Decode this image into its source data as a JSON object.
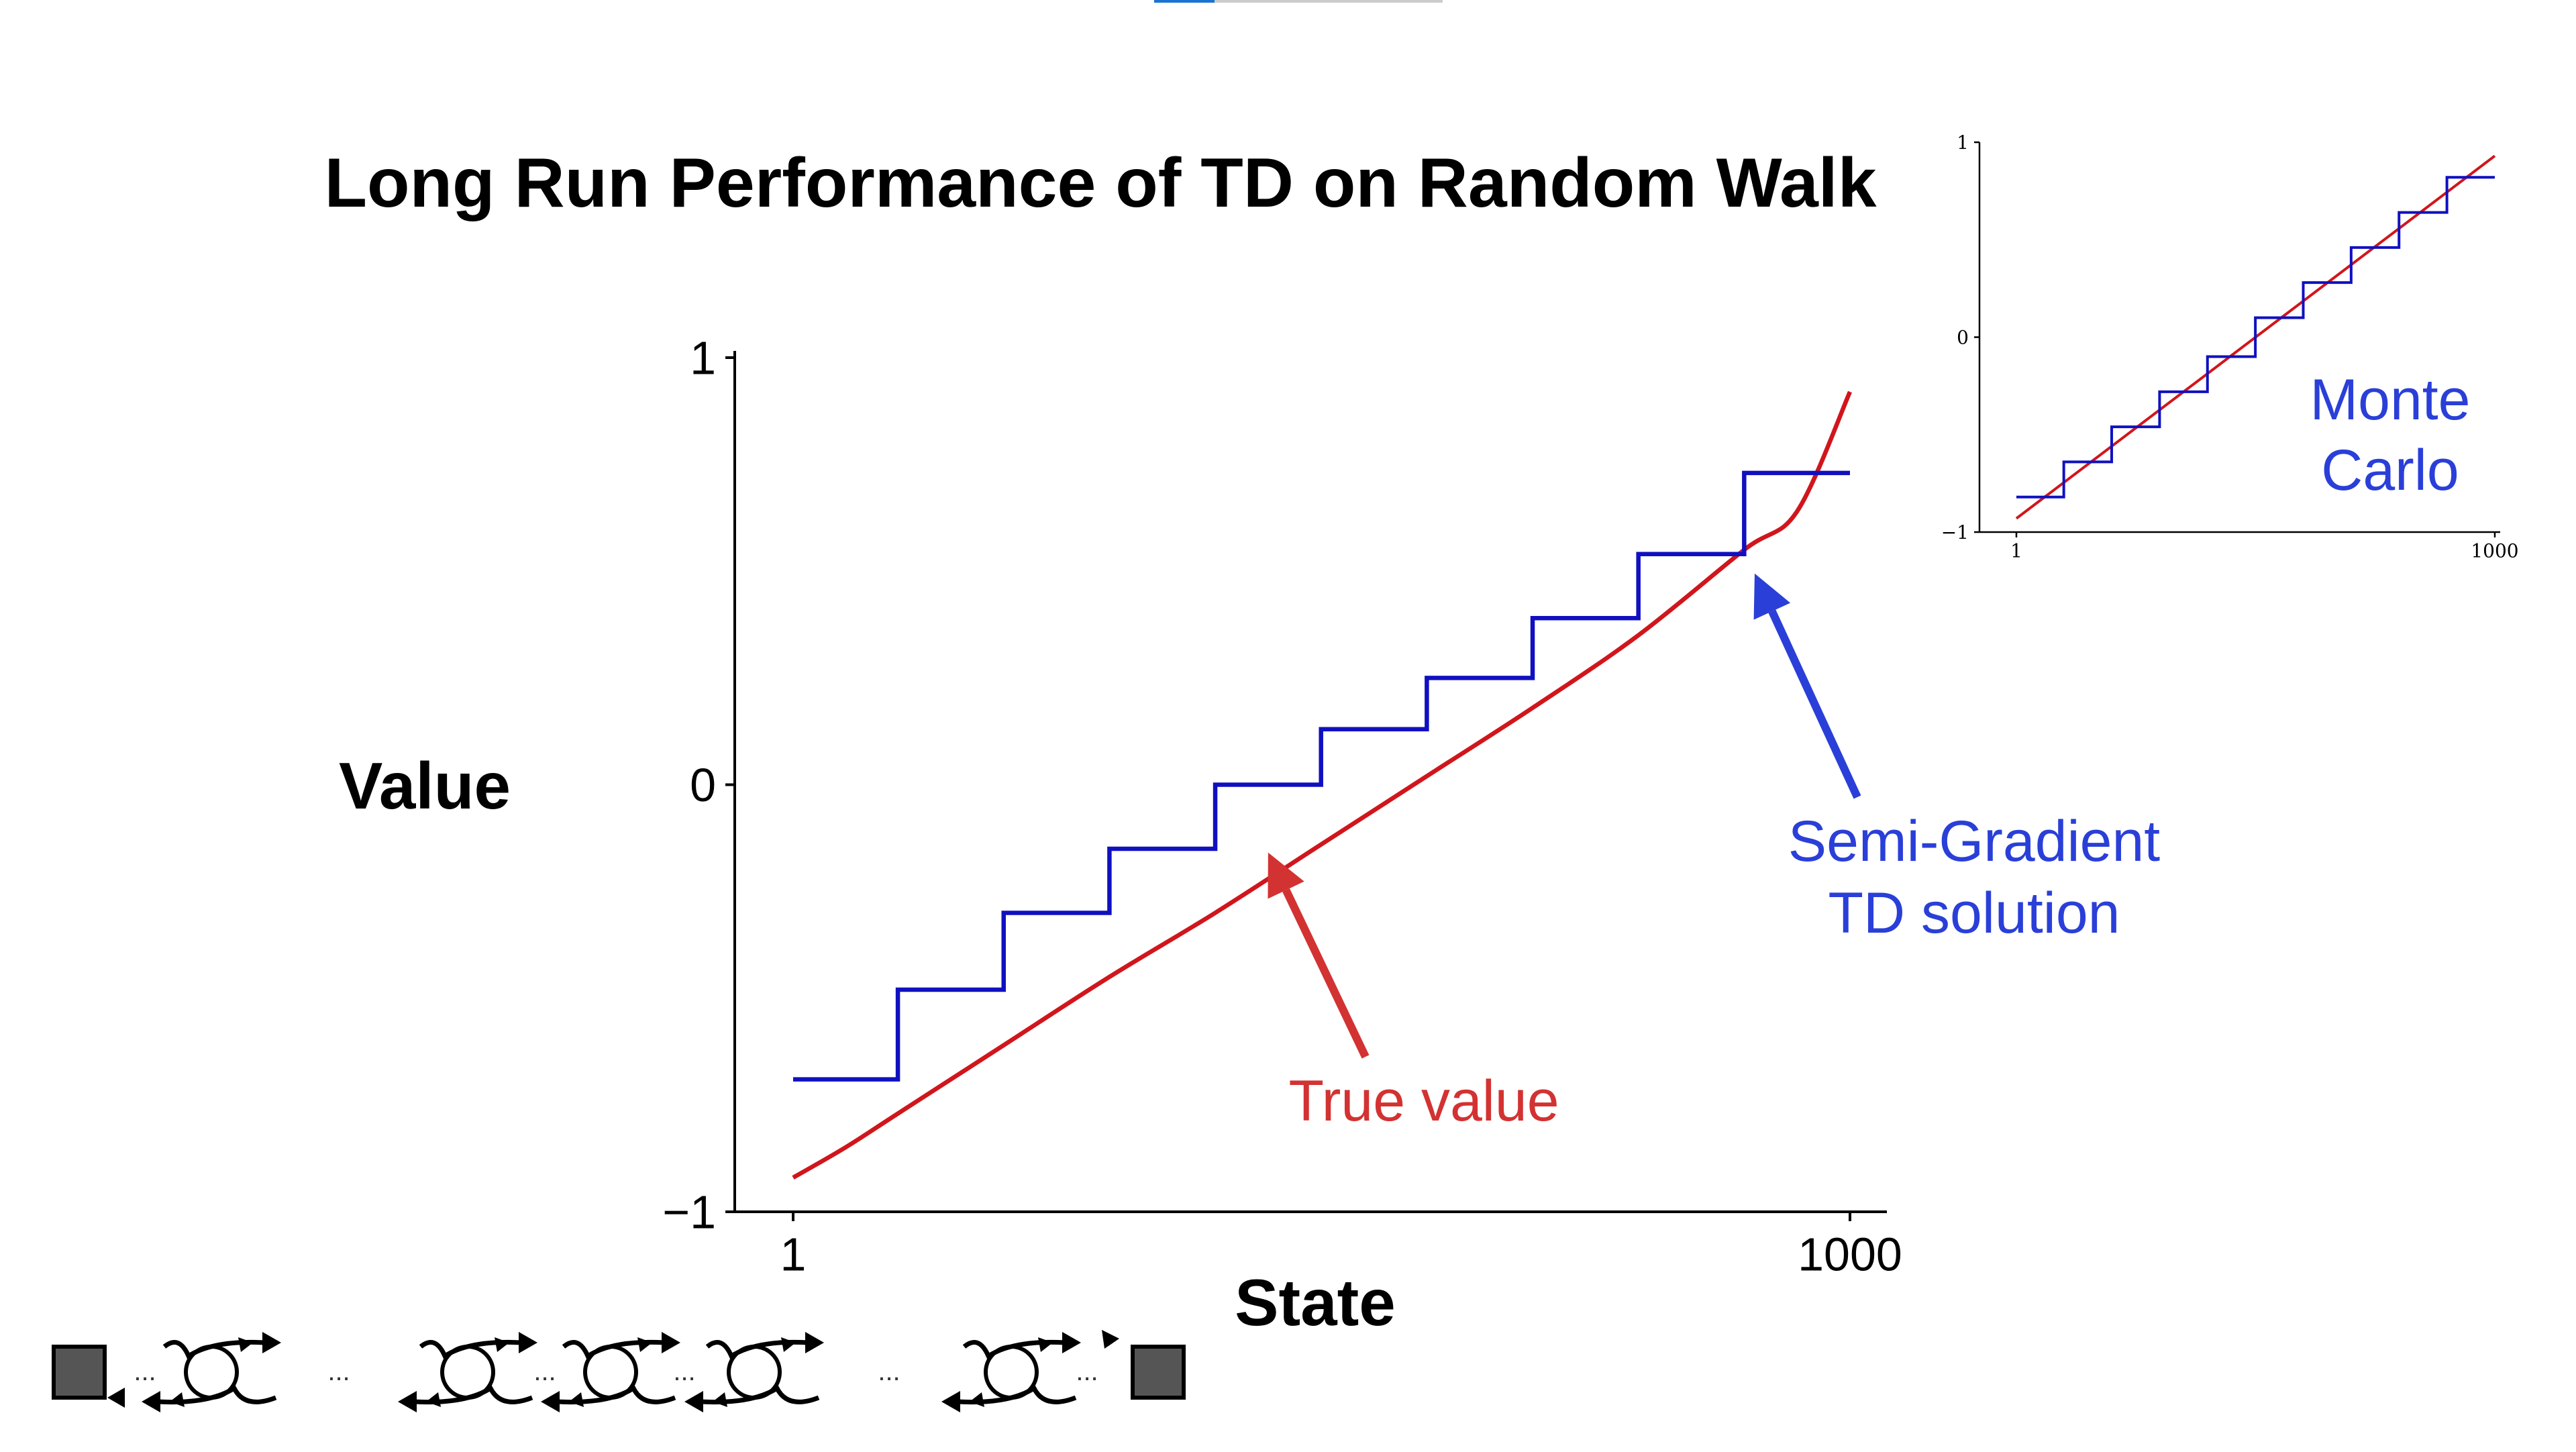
{
  "title": "Long Run Performance of TD on Random Walk",
  "colors": {
    "true_value": "#d0161c",
    "td_solution": "#1010c0",
    "annotation_blue": "#2a3fd8",
    "annotation_red": "#d33232",
    "axis": "#000000",
    "terminal_state": "#555555",
    "top_bar": "#1a73d0"
  },
  "chart_data": [
    {
      "type": "line",
      "title": "Long Run Performance of TD on Random Walk",
      "xlabel": "State",
      "ylabel": "Value",
      "xlim": [
        1,
        1000
      ],
      "ylim": [
        -1,
        1
      ],
      "x_ticks": [
        "1",
        "1000"
      ],
      "y_ticks": [
        "1",
        "0",
        "−1"
      ],
      "grid": false,
      "series": [
        {
          "name": "True value",
          "kind": "line",
          "color": "#d0161c",
          "x": [
            1,
            50,
            100,
            200,
            300,
            400,
            500,
            600,
            700,
            800,
            900,
            950,
            1000
          ],
          "y": [
            -0.92,
            -0.85,
            -0.77,
            -0.61,
            -0.45,
            -0.3,
            -0.14,
            0.02,
            0.18,
            0.35,
            0.55,
            0.64,
            0.92
          ]
        },
        {
          "name": "Semi-Gradient TD solution",
          "kind": "step",
          "color": "#1010c0",
          "x": [
            1,
            100,
            200,
            300,
            400,
            500,
            600,
            700,
            800,
            900,
            1000
          ],
          "y": [
            -0.69,
            -0.48,
            -0.3,
            -0.15,
            0.0,
            0.13,
            0.25,
            0.39,
            0.54,
            0.73,
            0.73
          ]
        }
      ],
      "annotations": [
        {
          "text_lines": [
            "True value"
          ],
          "color": "#d33232",
          "points_to": {
            "x": 450,
            "y": -0.14
          }
        },
        {
          "text_lines": [
            "Semi-Gradient",
            "TD solution"
          ],
          "color": "#2a3fd8",
          "points_to": {
            "x": 915,
            "y": 0.46
          }
        }
      ]
    },
    {
      "type": "line",
      "title": "",
      "xlim": [
        1,
        1000
      ],
      "ylim": [
        -1,
        1
      ],
      "x_ticks": [
        "1",
        "1000"
      ],
      "y_ticks": [
        "1",
        "0",
        "−1"
      ],
      "label_lines": [
        "Monte",
        "Carlo"
      ],
      "series": [
        {
          "kind": "line",
          "color": "#d0161c",
          "x": [
            1,
            1000
          ],
          "y": [
            -0.93,
            0.93
          ]
        },
        {
          "kind": "step",
          "color": "#1010c0",
          "x": [
            1,
            100,
            200,
            300,
            400,
            500,
            600,
            700,
            800,
            900,
            1000
          ],
          "y": [
            -0.82,
            -0.64,
            -0.46,
            -0.28,
            -0.1,
            0.1,
            0.28,
            0.46,
            0.64,
            0.82,
            0.82
          ]
        }
      ]
    }
  ],
  "random_walk_diagram": {
    "ellipsis": "...",
    "state_count": 5
  }
}
